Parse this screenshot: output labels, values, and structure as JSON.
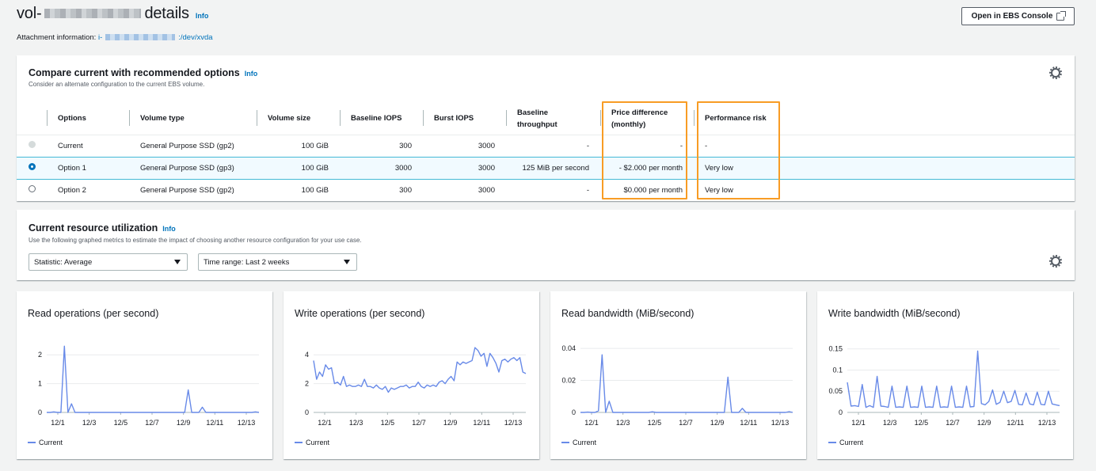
{
  "header": {
    "title_prefix": "vol-",
    "title_suffix": "details",
    "info": "Info",
    "attachment_label": "Attachment information:",
    "attachment_prefix": "i-",
    "attachment_suffix": ":/dev/xvda",
    "open_console": "Open in EBS Console"
  },
  "compare": {
    "title": "Compare current with recommended options",
    "info": "Info",
    "description": "Consider an alternate configuration to the current EBS volume.",
    "columns": [
      "Options",
      "Volume type",
      "Volume size",
      "Baseline IOPS",
      "Burst IOPS",
      "Baseline throughput",
      "Price difference (monthly)",
      "Performance risk"
    ],
    "rows": [
      {
        "option": "Current",
        "type": "General Purpose SSD (gp2)",
        "size": "100 GiB",
        "baseline_iops": "300",
        "burst_iops": "3000",
        "throughput": "-",
        "price": "-",
        "risk": "-",
        "state": "disabled"
      },
      {
        "option": "Option 1",
        "type": "General Purpose SSD (gp3)",
        "size": "100 GiB",
        "baseline_iops": "3000",
        "burst_iops": "3000",
        "throughput": "125 MiB per second",
        "price": "- $2.000 per month",
        "risk": "Very low",
        "state": "selected"
      },
      {
        "option": "Option 2",
        "type": "General Purpose SSD (gp2)",
        "size": "100 GiB",
        "baseline_iops": "300",
        "burst_iops": "3000",
        "throughput": "-",
        "price": "$0.000 per month",
        "risk": "Very low",
        "state": "unselected"
      }
    ],
    "highlight_color": "#f89c24"
  },
  "utilization": {
    "title": "Current resource utilization",
    "info": "Info",
    "description": "Use the following graphed metrics to estimate the impact of choosing another resource configuration for your use case.",
    "statistic": "Statistic: Average",
    "time_range": "Time range: Last 2 weeks"
  },
  "chart_data": [
    {
      "type": "line",
      "title": "Read operations (per second)",
      "x_ticks": [
        "12/1",
        "12/3",
        "12/5",
        "12/7",
        "12/9",
        "12/11",
        "12/13"
      ],
      "y_ticks": [
        "0",
        "1",
        "2"
      ],
      "ylim": [
        0,
        2.5
      ],
      "series": [
        {
          "name": "Current",
          "color": "#688ae8",
          "values": [
            0,
            0,
            0.02,
            0,
            0,
            2.3,
            0,
            0.3,
            0,
            0,
            0,
            0,
            0,
            0,
            0,
            0,
            0,
            0,
            0,
            0,
            0,
            0,
            0,
            0,
            0,
            0,
            0,
            0,
            0,
            0,
            0,
            0,
            0,
            0,
            0,
            0,
            0,
            0,
            0,
            0,
            0.78,
            0,
            0,
            0,
            0.18,
            0,
            0,
            0,
            0,
            0,
            0,
            0,
            0,
            0,
            0,
            0,
            0,
            0,
            0,
            0.02,
            0
          ]
        }
      ]
    },
    {
      "type": "line",
      "title": "Write operations (per second)",
      "x_ticks": [
        "12/1",
        "12/3",
        "12/5",
        "12/7",
        "12/9",
        "12/11",
        "12/13"
      ],
      "y_ticks": [
        "0",
        "2",
        "4"
      ],
      "ylim": [
        0,
        5
      ],
      "series": [
        {
          "name": "Current",
          "color": "#688ae8",
          "values": [
            3.6,
            2.3,
            2.8,
            2.5,
            3.3,
            3.0,
            3.1,
            2.0,
            2.1,
            1.9,
            2.5,
            1.8,
            1.9,
            1.8,
            1.8,
            1.9,
            1.8,
            2.3,
            1.8,
            1.8,
            1.7,
            1.9,
            1.7,
            1.6,
            1.8,
            1.4,
            1.7,
            1.6,
            1.7,
            1.8,
            1.8,
            1.9,
            1.7,
            1.8,
            1.8,
            2.1,
            1.8,
            1.7,
            1.9,
            1.8,
            1.9,
            1.8,
            2.1,
            2.2,
            2.0,
            2.3,
            2.5,
            2.2,
            3.5,
            3.3,
            3.5,
            3.4,
            3.5,
            3.6,
            4.5,
            4.3,
            3.9,
            4.1,
            3.2,
            4.1,
            3.8,
            3.4,
            2.8,
            3.6,
            3.7,
            3.5,
            3.7,
            3.8,
            3.6,
            3.8,
            2.8,
            2.7
          ]
        }
      ]
    },
    {
      "type": "line",
      "title": "Read bandwidth (MiB/second)",
      "x_ticks": [
        "12/1",
        "12/3",
        "12/5",
        "12/7",
        "12/9",
        "12/11",
        "12/13"
      ],
      "y_ticks": [
        "0",
        "0.02",
        "0.04"
      ],
      "ylim": [
        0,
        0.045
      ],
      "series": [
        {
          "name": "Current",
          "color": "#688ae8",
          "values": [
            0,
            0,
            0.0002,
            0,
            0,
            0.001,
            0.036,
            0,
            0.007,
            0,
            0,
            0,
            0,
            0,
            0,
            0,
            0,
            0,
            0,
            0,
            0.0004,
            0,
            0,
            0,
            0,
            0,
            0,
            0,
            0,
            0,
            0,
            0,
            0,
            0,
            0,
            0,
            0,
            0,
            0,
            0,
            0,
            0.022,
            0,
            0,
            0,
            0.0025,
            0,
            0,
            0,
            0,
            0,
            0,
            0,
            0,
            0,
            0,
            0,
            0,
            0.0005,
            0
          ]
        }
      ]
    },
    {
      "type": "line",
      "title": "Write bandwidth (MiB/second)",
      "x_ticks": [
        "12/1",
        "12/3",
        "12/5",
        "12/7",
        "12/9",
        "12/11",
        "12/13"
      ],
      "y_ticks": [
        "0",
        "0.05",
        "0.1",
        "0.15"
      ],
      "ylim": [
        0,
        0.17
      ],
      "series": [
        {
          "name": "Current",
          "color": "#688ae8",
          "values": [
            0.071,
            0.015,
            0.016,
            0.014,
            0.066,
            0.012,
            0.016,
            0.012,
            0.085,
            0.015,
            0.014,
            0.012,
            0.062,
            0.012,
            0.013,
            0.012,
            0.062,
            0.012,
            0.013,
            0.012,
            0.062,
            0.012,
            0.013,
            0.012,
            0.062,
            0.012,
            0.013,
            0.012,
            0.062,
            0.012,
            0.013,
            0.012,
            0.062,
            0.013,
            0.014,
            0.145,
            0.021,
            0.018,
            0.026,
            0.053,
            0.019,
            0.024,
            0.05,
            0.023,
            0.026,
            0.052,
            0.019,
            0.018,
            0.046,
            0.02,
            0.018,
            0.048,
            0.019,
            0.018,
            0.05,
            0.02,
            0.018,
            0.016
          ]
        }
      ]
    }
  ]
}
